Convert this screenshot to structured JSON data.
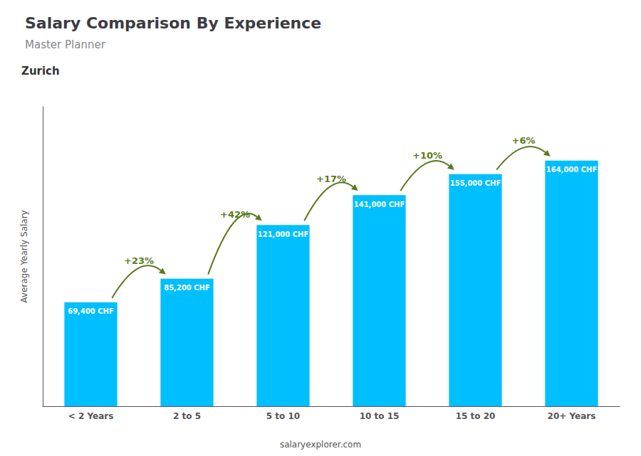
{
  "chart_data": {
    "type": "bar",
    "title": "Salary Comparison By Experience",
    "subtitle": "Master Planner",
    "annotations": [
      "Zurich",
      "salaryexplorer.com"
    ],
    "ylabel": "Average Yearly Salary",
    "categories": [
      "< 2 Years",
      "2 to 5",
      "5 to 10",
      "10 to 15",
      "15 to 20",
      "20+ Years"
    ],
    "values": [
      69400,
      85200,
      121000,
      141000,
      155000,
      164000
    ],
    "value_labels": [
      "69,400 CHF",
      "85,200 CHF",
      "121,000 CHF",
      "141,000 CHF",
      "155,000 CHF",
      "164,000 CHF"
    ],
    "change_labels": [
      "+23%",
      "+42%",
      "+17%",
      "+10%",
      "+6%"
    ],
    "color": "#00BFFF",
    "ylim": [
      0,
      200000
    ],
    "data_labels": true,
    "tick_labels": "x",
    "grid": false
  }
}
